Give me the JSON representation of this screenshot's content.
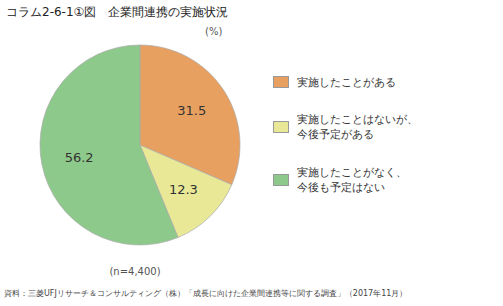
{
  "chart_data": {
    "type": "pie",
    "title": "コラム2-6-1①図　企業間連携の実施状況",
    "categories": [
      "実施したことがある",
      "実施したことはないが、\n今後予定がある",
      "実施したことがなく、\n今後も予定はない"
    ],
    "values": [
      31.5,
      12.3,
      56.2
    ],
    "colors": [
      "#E8A060",
      "#E8E896",
      "#8DC98A"
    ],
    "data_labels": true,
    "legend": "right",
    "annotations": [
      "(%)",
      "(n=4,400)",
      "資料：三菱UFJリサーチ＆コンサルティング（株）「成長に向けた企業間連携等に関する調査」（2017年11月）"
    ]
  }
}
